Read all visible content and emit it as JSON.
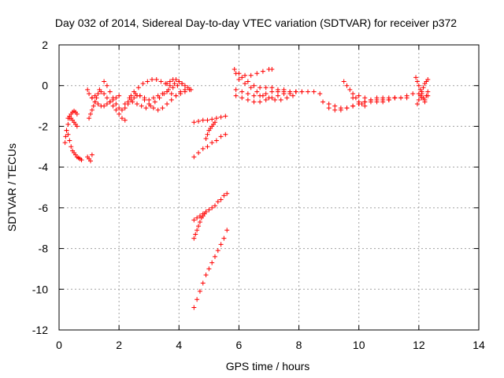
{
  "chart_data": {
    "type": "scatter",
    "title": "Day 032 of 2014, Sidereal Day-to-day VTEC variation (SDTVAR) for receiver p372",
    "xlabel": "GPS time / hours",
    "ylabel": "SDTVAR / TECUs",
    "xlim": [
      0,
      14
    ],
    "ylim": [
      -12,
      2
    ],
    "xticks": [
      "0",
      "2",
      "4",
      "6",
      "8",
      "10",
      "12",
      "14"
    ],
    "yticks": [
      "-12",
      "-10",
      "-8",
      "-6",
      "-4",
      "-2",
      "0",
      "2"
    ],
    "grid": true,
    "marker": "+",
    "color": "#ff0000",
    "series": [
      {
        "x": [
          0.2,
          0.22,
          0.25,
          0.3,
          0.35,
          0.4,
          0.45,
          0.5,
          0.55,
          0.6
        ],
        "y": [
          -2.8,
          -2.5,
          -2.2,
          -1.9,
          -1.6,
          -1.4,
          -1.3,
          -1.25,
          -1.3,
          -1.4
        ]
      },
      {
        "x": [
          0.25,
          0.3,
          0.35,
          0.4,
          0.45,
          0.5,
          0.55,
          0.6,
          0.65,
          0.7,
          0.75
        ],
        "y": [
          -2.2,
          -2.4,
          -2.7,
          -3.0,
          -3.2,
          -3.3,
          -3.4,
          -3.5,
          -3.55,
          -3.6,
          -3.65
        ]
      },
      {
        "x": [
          0.3,
          0.35,
          0.4,
          0.45,
          0.5,
          0.55,
          0.6
        ],
        "y": [
          -1.6,
          -1.5,
          -1.6,
          -1.7,
          -1.8,
          -1.9,
          -2.0
        ]
      },
      {
        "x": [
          0.95,
          1.0,
          1.05,
          1.1
        ],
        "y": [
          -3.5,
          -3.6,
          -3.7,
          -3.4
        ]
      },
      {
        "x": [
          0.95,
          1.0,
          1.1,
          1.2,
          1.3,
          1.4,
          1.5,
          1.6,
          1.7,
          1.8,
          1.9,
          2.0
        ],
        "y": [
          -0.2,
          -0.4,
          -0.6,
          -0.8,
          -0.9,
          -1.0,
          -1.0,
          -0.9,
          -0.8,
          -0.7,
          -0.6,
          -0.5
        ]
      },
      {
        "x": [
          1.0,
          1.05,
          1.1,
          1.15,
          1.2,
          1.25,
          1.3,
          1.35
        ],
        "y": [
          -1.6,
          -1.4,
          -1.2,
          -1.0,
          -0.8,
          -0.6,
          -0.4,
          -0.2
        ]
      },
      {
        "x": [
          1.1,
          1.2,
          1.3,
          1.4,
          1.5,
          1.6,
          1.7,
          1.8,
          1.9,
          2.0,
          2.1,
          2.2
        ],
        "y": [
          -0.6,
          -0.5,
          -0.4,
          -0.3,
          -0.4,
          -0.6,
          -0.8,
          -1.0,
          -1.2,
          -1.4,
          -1.6,
          -1.7
        ]
      },
      {
        "x": [
          1.5,
          1.6,
          1.7,
          1.8,
          1.9,
          2.0,
          2.1,
          2.2,
          2.3,
          2.4,
          2.5,
          2.6
        ],
        "y": [
          0.2,
          0.0,
          -0.3,
          -0.6,
          -0.9,
          -1.1,
          -1.2,
          -1.1,
          -0.9,
          -0.7,
          -0.6,
          -0.5
        ]
      },
      {
        "x": [
          2.2,
          2.35,
          2.5,
          2.65,
          2.8,
          2.95,
          3.1,
          3.25,
          3.4,
          3.55,
          3.7,
          3.85,
          4.0
        ],
        "y": [
          -0.9,
          -0.6,
          -0.3,
          -0.1,
          0.1,
          0.2,
          0.3,
          0.3,
          0.2,
          0.1,
          0.0,
          0.1,
          0.2
        ]
      },
      {
        "x": [
          2.3,
          2.45,
          2.6,
          2.75,
          2.9,
          3.05,
          3.2,
          3.35,
          3.5,
          3.65,
          3.8,
          3.95,
          4.1
        ],
        "y": [
          -0.8,
          -0.8,
          -0.9,
          -1.0,
          -1.1,
          -1.0,
          -0.8,
          -0.6,
          -0.4,
          -0.2,
          -0.1,
          0.0,
          0.1
        ]
      },
      {
        "x": [
          2.4,
          2.55,
          2.7,
          2.85,
          3.0,
          3.15,
          3.3,
          3.45,
          3.6,
          3.75,
          3.9,
          4.05,
          4.2
        ],
        "y": [
          -0.5,
          -0.4,
          -0.5,
          -0.7,
          -0.9,
          -1.1,
          -1.2,
          -1.1,
          -0.9,
          -0.7,
          -0.5,
          -0.3,
          -0.2
        ]
      },
      {
        "x": [
          2.7,
          2.85,
          3.0,
          3.15,
          3.3,
          3.45,
          3.6,
          3.75,
          3.9,
          4.05,
          4.2,
          4.35
        ],
        "y": [
          -0.5,
          -0.6,
          -0.7,
          -0.6,
          -0.5,
          -0.4,
          -0.3,
          -0.4,
          -0.5,
          -0.4,
          -0.3,
          -0.2
        ]
      },
      {
        "x": [
          3.6,
          3.7,
          3.8,
          3.9,
          4.0,
          4.1,
          4.2,
          4.3,
          4.4
        ],
        "y": [
          0.1,
          0.2,
          0.3,
          0.3,
          0.2,
          0.1,
          0.0,
          -0.1,
          -0.2
        ]
      },
      {
        "x": [
          4.5,
          4.65,
          4.8,
          4.95,
          5.1,
          5.25,
          5.4,
          5.55
        ],
        "y": [
          -1.8,
          -1.75,
          -1.7,
          -1.7,
          -1.65,
          -1.6,
          -1.55,
          -1.5
        ]
      },
      {
        "x": [
          4.9,
          4.95,
          5.0,
          5.05,
          5.1,
          5.15,
          5.2
        ],
        "y": [
          -2.6,
          -2.4,
          -2.2,
          -2.1,
          -2.0,
          -1.9,
          -1.8
        ]
      },
      {
        "x": [
          4.5,
          4.65,
          4.8,
          4.95,
          5.1,
          5.25,
          5.4,
          5.55
        ],
        "y": [
          -3.5,
          -3.3,
          -3.1,
          -3.0,
          -2.8,
          -2.7,
          -2.5,
          -2.4
        ]
      },
      {
        "x": [
          4.5,
          4.6,
          4.7,
          4.8,
          4.9,
          5.0,
          5.1,
          5.2,
          5.3,
          5.4,
          5.5,
          5.6
        ],
        "y": [
          -6.6,
          -6.5,
          -6.4,
          -6.3,
          -6.2,
          -6.1,
          -6.0,
          -5.9,
          -5.7,
          -5.6,
          -5.4,
          -5.3
        ]
      },
      {
        "x": [
          4.5,
          4.55,
          4.6,
          4.65,
          4.7,
          4.75,
          4.8,
          4.85,
          4.9
        ],
        "y": [
          -7.5,
          -7.3,
          -7.1,
          -6.9,
          -6.7,
          -6.5,
          -6.4,
          -6.3,
          -6.2
        ]
      },
      {
        "x": [
          4.5,
          4.6,
          4.7,
          4.8,
          4.9,
          5.0,
          5.1,
          5.2,
          5.3,
          5.4,
          5.5,
          5.6
        ],
        "y": [
          -10.9,
          -10.5,
          -10.1,
          -9.7,
          -9.3,
          -9.0,
          -8.7,
          -8.4,
          -8.1,
          -7.8,
          -7.5,
          -7.1
        ]
      },
      {
        "x": [
          5.85,
          6.0,
          6.2,
          6.4,
          6.6,
          6.8,
          7.0,
          7.1
        ],
        "y": [
          0.8,
          0.6,
          0.5,
          0.5,
          0.6,
          0.7,
          0.8,
          0.8
        ]
      },
      {
        "x": [
          5.9,
          6.1,
          6.3,
          6.5,
          6.7,
          6.9,
          7.1,
          7.3,
          7.5,
          7.7,
          7.9,
          8.1,
          8.3,
          8.5,
          8.7
        ],
        "y": [
          0.6,
          0.4,
          0.2,
          0.0,
          -0.1,
          -0.1,
          -0.1,
          -0.2,
          -0.2,
          -0.3,
          -0.3,
          -0.3,
          -0.3,
          -0.3,
          -0.4
        ]
      },
      {
        "x": [
          5.9,
          6.1,
          6.3,
          6.5,
          6.7,
          6.9,
          7.1,
          7.3,
          7.5,
          7.7,
          7.9,
          8.1,
          8.3
        ],
        "y": [
          -0.2,
          -0.3,
          -0.4,
          -0.5,
          -0.5,
          -0.4,
          -0.3,
          -0.3,
          -0.3,
          -0.3,
          -0.3,
          -0.3,
          -0.3
        ]
      },
      {
        "x": [
          5.9,
          6.1,
          6.3,
          6.5,
          6.7,
          6.9,
          7.1,
          7.3,
          7.5,
          7.7,
          7.9
        ],
        "y": [
          -0.5,
          -0.6,
          -0.7,
          -0.8,
          -0.8,
          -0.7,
          -0.6,
          -0.5,
          -0.4,
          -0.4,
          -0.3
        ]
      },
      {
        "x": [
          6.0,
          6.2,
          6.4,
          6.6,
          6.8,
          7.0,
          7.2,
          7.4,
          7.6,
          7.8
        ],
        "y": [
          0.3,
          0.1,
          -0.1,
          -0.3,
          -0.5,
          -0.6,
          -0.7,
          -0.7,
          -0.6,
          -0.5
        ]
      },
      {
        "x": [
          8.8,
          9.0,
          9.2,
          9.4,
          9.6,
          9.8,
          10.0,
          10.2,
          10.4,
          10.6,
          10.8,
          11.0,
          11.2,
          11.4,
          11.6,
          11.8
        ],
        "y": [
          -0.8,
          -0.9,
          -1.0,
          -1.1,
          -1.1,
          -1.0,
          -0.9,
          -0.8,
          -0.8,
          -0.7,
          -0.7,
          -0.7,
          -0.6,
          -0.6,
          -0.5,
          -0.4
        ]
      },
      {
        "x": [
          9.0,
          9.2,
          9.4,
          9.6,
          9.8,
          10.0,
          10.2,
          10.4,
          10.6,
          10.8,
          11.0,
          11.2,
          11.4,
          11.6
        ],
        "y": [
          -1.1,
          -1.2,
          -1.2,
          -1.1,
          -1.0,
          -0.9,
          -0.8,
          -0.7,
          -0.6,
          -0.6,
          -0.6,
          -0.6,
          -0.6,
          -0.6
        ]
      },
      {
        "x": [
          9.5,
          9.6,
          9.7,
          9.8,
          9.9,
          10.0,
          10.1,
          10.2
        ],
        "y": [
          0.2,
          0.0,
          -0.2,
          -0.4,
          -0.6,
          -0.8,
          -0.9,
          -1.0
        ]
      },
      {
        "x": [
          9.8,
          10.0,
          10.2,
          10.4,
          10.6,
          10.8,
          11.0,
          11.2
        ],
        "y": [
          -0.6,
          -0.5,
          -0.6,
          -0.7,
          -0.8,
          -0.8,
          -0.7,
          -0.6
        ]
      },
      {
        "x": [
          11.9,
          11.95,
          12.0,
          12.05,
          12.1,
          12.15,
          12.2,
          12.25,
          12.3
        ],
        "y": [
          0.4,
          0.2,
          0.0,
          -0.2,
          -0.4,
          -0.6,
          -0.7,
          -0.5,
          -0.3
        ]
      },
      {
        "x": [
          11.95,
          12.0,
          12.05,
          12.1,
          12.15,
          12.2,
          12.25,
          12.3
        ],
        "y": [
          -0.9,
          -0.7,
          -0.5,
          -0.3,
          -0.1,
          0.1,
          0.2,
          0.3
        ]
      },
      {
        "x": [
          12.0,
          12.1,
          12.2,
          12.3
        ],
        "y": [
          -0.4,
          -0.6,
          -0.8,
          -0.5
        ]
      }
    ]
  }
}
